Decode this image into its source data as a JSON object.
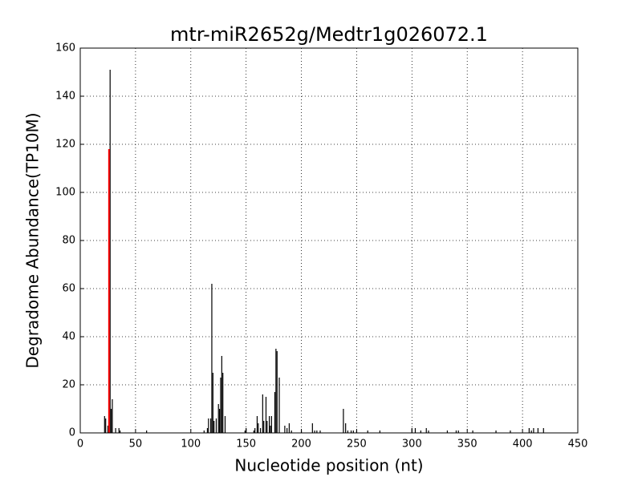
{
  "chart_data": {
    "type": "bar",
    "title": "mtr-miR2652g/Medtr1g026072.1",
    "x_label": "Nucleotide position (nt)",
    "y_label": "Degradome Abundance(TP10M)",
    "xlim": [
      0,
      450
    ],
    "xticks": [
      0,
      50,
      100,
      150,
      200,
      250,
      300,
      350,
      400,
      450
    ],
    "ylim": [
      0,
      160
    ],
    "yticks": [
      0,
      20,
      40,
      60,
      80,
      100,
      120,
      140,
      160
    ],
    "grid": true,
    "color": "#000000",
    "x": [
      22,
      23,
      25,
      27,
      28,
      29,
      32,
      35,
      36,
      60,
      112,
      115,
      116,
      118,
      119,
      120,
      121,
      123,
      125,
      126,
      127,
      128,
      129,
      131,
      149,
      150,
      157,
      158,
      160,
      161,
      163,
      165,
      166,
      168,
      169,
      171,
      172,
      173,
      176,
      177,
      178,
      180,
      185,
      187,
      189,
      191,
      200,
      210,
      212,
      214,
      217,
      238,
      240,
      242,
      245,
      247,
      250,
      260,
      271,
      300,
      303,
      308,
      313,
      315,
      332,
      340,
      342,
      355,
      376,
      389,
      406,
      408,
      410,
      414,
      419
    ],
    "values": [
      7,
      6,
      3,
      151,
      10,
      14,
      2,
      2,
      1,
      1,
      1,
      2,
      6,
      6,
      62,
      25,
      5,
      6,
      12,
      10,
      23,
      32,
      25,
      7,
      1,
      2,
      1,
      2,
      7,
      4,
      2,
      16,
      5,
      15,
      5,
      7,
      3,
      7,
      17,
      35,
      34,
      23,
      3,
      2,
      4,
      1,
      1,
      4,
      1,
      1,
      1,
      10,
      4,
      1,
      1,
      1,
      1,
      1,
      1,
      2,
      2,
      1,
      2,
      1,
      1,
      1,
      1,
      1,
      1,
      1,
      2,
      1,
      2,
      2,
      2
    ],
    "highlight": {
      "x": 26,
      "value": 118,
      "color": "#ff0000"
    }
  }
}
